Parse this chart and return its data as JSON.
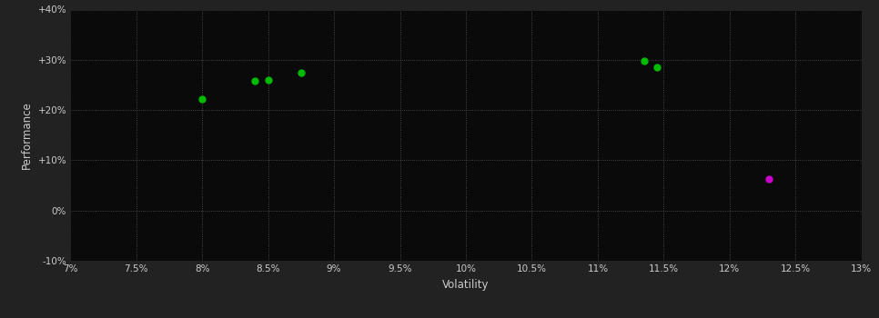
{
  "background_color": "#222222",
  "plot_bg_color": "#0a0a0a",
  "grid_color": "#555555",
  "text_color": "#cccccc",
  "xlabel": "Volatility",
  "ylabel": "Performance",
  "xlim": [
    0.07,
    0.13
  ],
  "ylim": [
    -0.1,
    0.4
  ],
  "xticks": [
    0.07,
    0.075,
    0.08,
    0.085,
    0.09,
    0.095,
    0.1,
    0.105,
    0.11,
    0.115,
    0.12,
    0.125,
    0.13
  ],
  "yticks": [
    -0.1,
    0.0,
    0.1,
    0.2,
    0.3,
    0.4
  ],
  "xtick_labels": [
    "7%",
    "7.5%",
    "8%",
    "8.5%",
    "9%",
    "9.5%",
    "10%",
    "10.5%",
    "11%",
    "11.5%",
    "12%",
    "12.5%",
    "13%"
  ],
  "ytick_labels": [
    "-10%",
    "0%",
    "+10%",
    "+20%",
    "+30%",
    "+40%"
  ],
  "green_points": [
    [
      0.08,
      0.222
    ],
    [
      0.084,
      0.258
    ],
    [
      0.085,
      0.26
    ],
    [
      0.0875,
      0.275
    ],
    [
      0.1135,
      0.298
    ],
    [
      0.1145,
      0.285
    ]
  ],
  "magenta_points": [
    [
      0.123,
      0.063
    ]
  ],
  "green_color": "#00bb00",
  "magenta_color": "#cc00cc",
  "marker_size": 5
}
